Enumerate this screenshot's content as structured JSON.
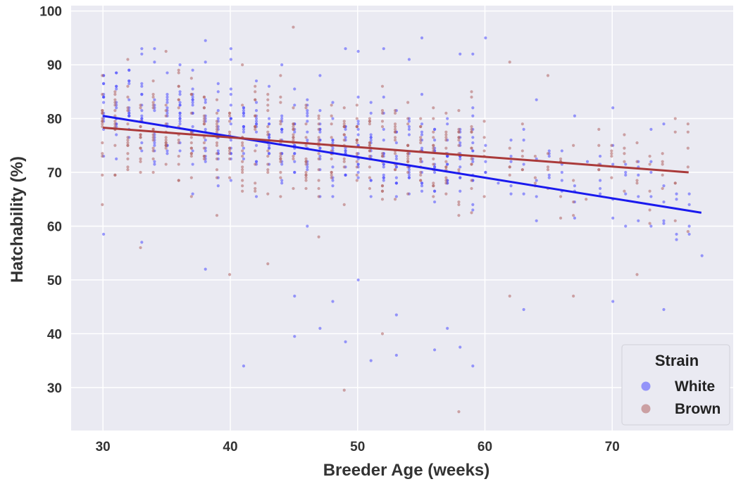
{
  "chart_data": {
    "type": "scatter",
    "xlabel": "Breeder Age (weeks)",
    "ylabel": "Hatchability (%)",
    "xlim": [
      27.5,
      79.5
    ],
    "ylim": [
      22,
      101
    ],
    "xticks": [
      "30",
      "40",
      "50",
      "60",
      "70"
    ],
    "yticks": [
      "30",
      "40",
      "50",
      "60",
      "70",
      "80",
      "90",
      "100"
    ],
    "grid": true,
    "legend_position": "bottom-right",
    "legend_title": "Strain",
    "series": [
      {
        "name": "White",
        "color": "#4a4aff",
        "points_summary": "dense scatter of ~600 points, ages 30–77 weeks, hatchability mostly 55–92%",
        "sample_points": [
          [
            30,
            58.5
          ],
          [
            30,
            88
          ],
          [
            31,
            79
          ],
          [
            32,
            87
          ],
          [
            33,
            93
          ],
          [
            33,
            57
          ],
          [
            34,
            93
          ],
          [
            35,
            84
          ],
          [
            36,
            90
          ],
          [
            37,
            66
          ],
          [
            38,
            94.5
          ],
          [
            38,
            52
          ],
          [
            39,
            85
          ],
          [
            40,
            93
          ],
          [
            41,
            34
          ],
          [
            42,
            83
          ],
          [
            43,
            76
          ],
          [
            44,
            90
          ],
          [
            45,
            47
          ],
          [
            45,
            39.5
          ],
          [
            46,
            60
          ],
          [
            47,
            41
          ],
          [
            48,
            46
          ],
          [
            49,
            93
          ],
          [
            49,
            38.5
          ],
          [
            50,
            92.5
          ],
          [
            50,
            50
          ],
          [
            51,
            35
          ],
          [
            52,
            93
          ],
          [
            53,
            36
          ],
          [
            53,
            43.5
          ],
          [
            54,
            91
          ],
          [
            55,
            95
          ],
          [
            56,
            37
          ],
          [
            57,
            41
          ],
          [
            58,
            92
          ],
          [
            58,
            37.5
          ],
          [
            59,
            92
          ],
          [
            59,
            34
          ],
          [
            60,
            95
          ],
          [
            61,
            68
          ],
          [
            62,
            66
          ],
          [
            63,
            44.5
          ],
          [
            64,
            83.5
          ],
          [
            65,
            73
          ],
          [
            66,
            70
          ],
          [
            67,
            80.5
          ],
          [
            68,
            72
          ],
          [
            69,
            66
          ],
          [
            70,
            82
          ],
          [
            70,
            46
          ],
          [
            71,
            60
          ],
          [
            72,
            61
          ],
          [
            73,
            78
          ],
          [
            74,
            44.5
          ],
          [
            74,
            79
          ],
          [
            77,
            54.5
          ]
        ]
      },
      {
        "name": "Brown",
        "color": "#b06262",
        "points_summary": "dense scatter of ~600 points, ages 30–76 weeks, hatchability mostly 55–90%",
        "sample_points": [
          [
            30,
            88
          ],
          [
            30,
            64
          ],
          [
            31,
            85
          ],
          [
            32,
            91
          ],
          [
            33,
            56
          ],
          [
            34,
            82
          ],
          [
            35,
            92.5
          ],
          [
            36,
            86
          ],
          [
            37,
            73
          ],
          [
            38,
            80
          ],
          [
            39,
            62
          ],
          [
            40,
            51
          ],
          [
            41,
            90
          ],
          [
            42,
            78
          ],
          [
            43,
            53
          ],
          [
            44,
            88
          ],
          [
            45,
            97
          ],
          [
            46,
            70
          ],
          [
            47,
            58
          ],
          [
            48,
            79
          ],
          [
            49,
            29.5
          ],
          [
            50,
            76
          ],
          [
            51,
            71
          ],
          [
            52,
            40
          ],
          [
            53,
            65
          ],
          [
            54,
            83
          ],
          [
            55,
            72
          ],
          [
            56,
            75
          ],
          [
            57,
            66
          ],
          [
            58,
            25.5
          ],
          [
            59,
            85
          ],
          [
            60,
            74
          ],
          [
            62,
            90.5
          ],
          [
            62,
            47
          ],
          [
            63,
            74
          ],
          [
            65,
            88
          ],
          [
            66,
            72
          ],
          [
            67,
            47
          ],
          [
            68,
            65
          ],
          [
            69,
            78
          ],
          [
            70,
            75
          ],
          [
            71,
            77
          ],
          [
            72,
            51
          ],
          [
            73,
            73
          ],
          [
            74,
            67
          ],
          [
            75,
            61
          ],
          [
            76,
            79
          ]
        ]
      }
    ],
    "trend_lines": [
      {
        "name": "White",
        "color": "#1a1aee",
        "x": [
          30,
          77
        ],
        "y": [
          80.5,
          62.5
        ]
      },
      {
        "name": "Brown",
        "color": "#aa3a3a",
        "x": [
          30,
          76
        ],
        "y": [
          78.3,
          70
        ]
      }
    ]
  }
}
